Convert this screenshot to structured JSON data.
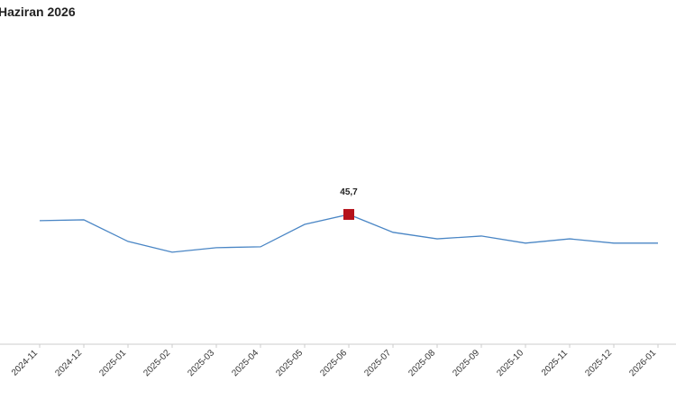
{
  "chart_data": {
    "type": "line",
    "title": "Haziran 2026",
    "categories": [
      "2024-11",
      "2024-12",
      "2025-01",
      "2025-02",
      "2025-03",
      "2025-04",
      "2025-05",
      "2025-06",
      "2025-07",
      "2025-08",
      "2025-09",
      "2025-10",
      "2025-11",
      "2025-12",
      "2026-01"
    ],
    "series": [
      {
        "color": "#4a86c5",
        "values": [
          43.5,
          43.8,
          36.2,
          32.4,
          34.0,
          34.3,
          42.2,
          45.7,
          39.4,
          37.1,
          38.1,
          35.6,
          37.1,
          35.6,
          35.6
        ],
        "value_labels": [
          null,
          null,
          null,
          null,
          null,
          null,
          null,
          "45,7",
          null,
          null,
          null,
          null,
          null,
          null,
          null
        ]
      }
    ],
    "highlight_color": "#b5121b",
    "ylim": [
      0,
      112
    ]
  }
}
